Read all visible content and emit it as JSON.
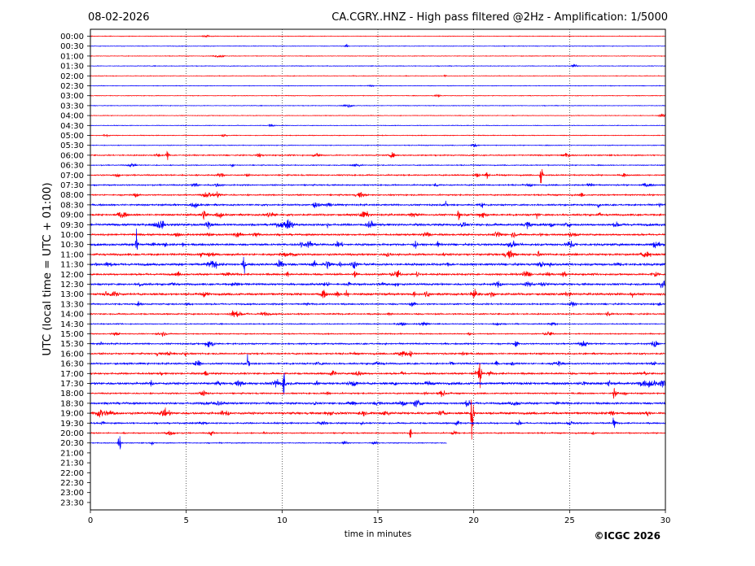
{
  "date": "08-02-2026",
  "chart_data": {
    "type": "line",
    "title": "CA.CGRY..HNZ - High pass filtered @2Hz - Amplification: 1/5000",
    "xlabel": "time in minutes",
    "ylabel": "UTC (local time = UTC + 01:00)",
    "xlim": [
      0,
      30
    ],
    "xticks": [
      "0",
      "5",
      "10",
      "15",
      "20",
      "25",
      "30"
    ],
    "grid_x": true,
    "row_labels": [
      "00:00",
      "00:30",
      "01:00",
      "01:30",
      "02:00",
      "02:30",
      "03:00",
      "03:30",
      "04:00",
      "04:30",
      "05:00",
      "05:30",
      "06:00",
      "06:30",
      "07:00",
      "07:30",
      "08:00",
      "08:30",
      "09:00",
      "09:30",
      "10:00",
      "10:30",
      "11:00",
      "11:30",
      "12:00",
      "12:30",
      "13:00",
      "13:30",
      "14:00",
      "14:30",
      "15:00",
      "15:30",
      "16:00",
      "16:30",
      "17:00",
      "17:30",
      "18:00",
      "18:30",
      "19:00",
      "19:30",
      "20:00",
      "20:30",
      "21:00",
      "21:30",
      "22:00",
      "22:30",
      "23:00",
      "23:30"
    ],
    "series_colors": [
      "#ff0000",
      "#0000ff"
    ],
    "traces_recorded": 42,
    "last_trace_end_minute": 18.6,
    "activity_level": [
      0.05,
      0.05,
      0.05,
      0.08,
      0.05,
      0.05,
      0.05,
      0.05,
      0.05,
      0.05,
      0.12,
      0.1,
      0.35,
      0.2,
      0.4,
      0.4,
      0.45,
      0.6,
      0.7,
      0.9,
      0.7,
      0.85,
      0.8,
      0.95,
      0.7,
      0.75,
      0.85,
      0.5,
      0.45,
      0.25,
      0.3,
      0.5,
      0.55,
      0.6,
      0.65,
      0.95,
      0.45,
      0.8,
      0.9,
      0.5,
      0.35,
      0.2
    ],
    "events": [
      {
        "row": 12,
        "minute": 4.0,
        "amplitude": 0.5
      },
      {
        "row": 14,
        "minute": 23.5,
        "amplitude": 1.1
      },
      {
        "row": 18,
        "minute": 19.2,
        "amplitude": 0.8
      },
      {
        "row": 21,
        "minute": 2.4,
        "amplitude": 1.6
      },
      {
        "row": 23,
        "minute": 8.0,
        "amplitude": 0.8
      },
      {
        "row": 24,
        "minute": 13.8,
        "amplitude": 0.6
      },
      {
        "row": 31,
        "minute": 22.2,
        "amplitude": 0.6
      },
      {
        "row": 33,
        "minute": 8.2,
        "amplitude": 0.7
      },
      {
        "row": 34,
        "minute": 20.3,
        "amplitude": 2.5
      },
      {
        "row": 35,
        "minute": 10.1,
        "amplitude": 1.5
      },
      {
        "row": 36,
        "minute": 27.3,
        "amplitude": 0.8
      },
      {
        "row": 38,
        "minute": 19.9,
        "amplitude": 3.5
      },
      {
        "row": 39,
        "minute": 27.3,
        "amplitude": 0.7
      },
      {
        "row": 40,
        "minute": 16.7,
        "amplitude": 0.6
      },
      {
        "row": 41,
        "minute": 1.5,
        "amplitude": 1.0
      }
    ]
  },
  "credit": "©ICGC 2026"
}
